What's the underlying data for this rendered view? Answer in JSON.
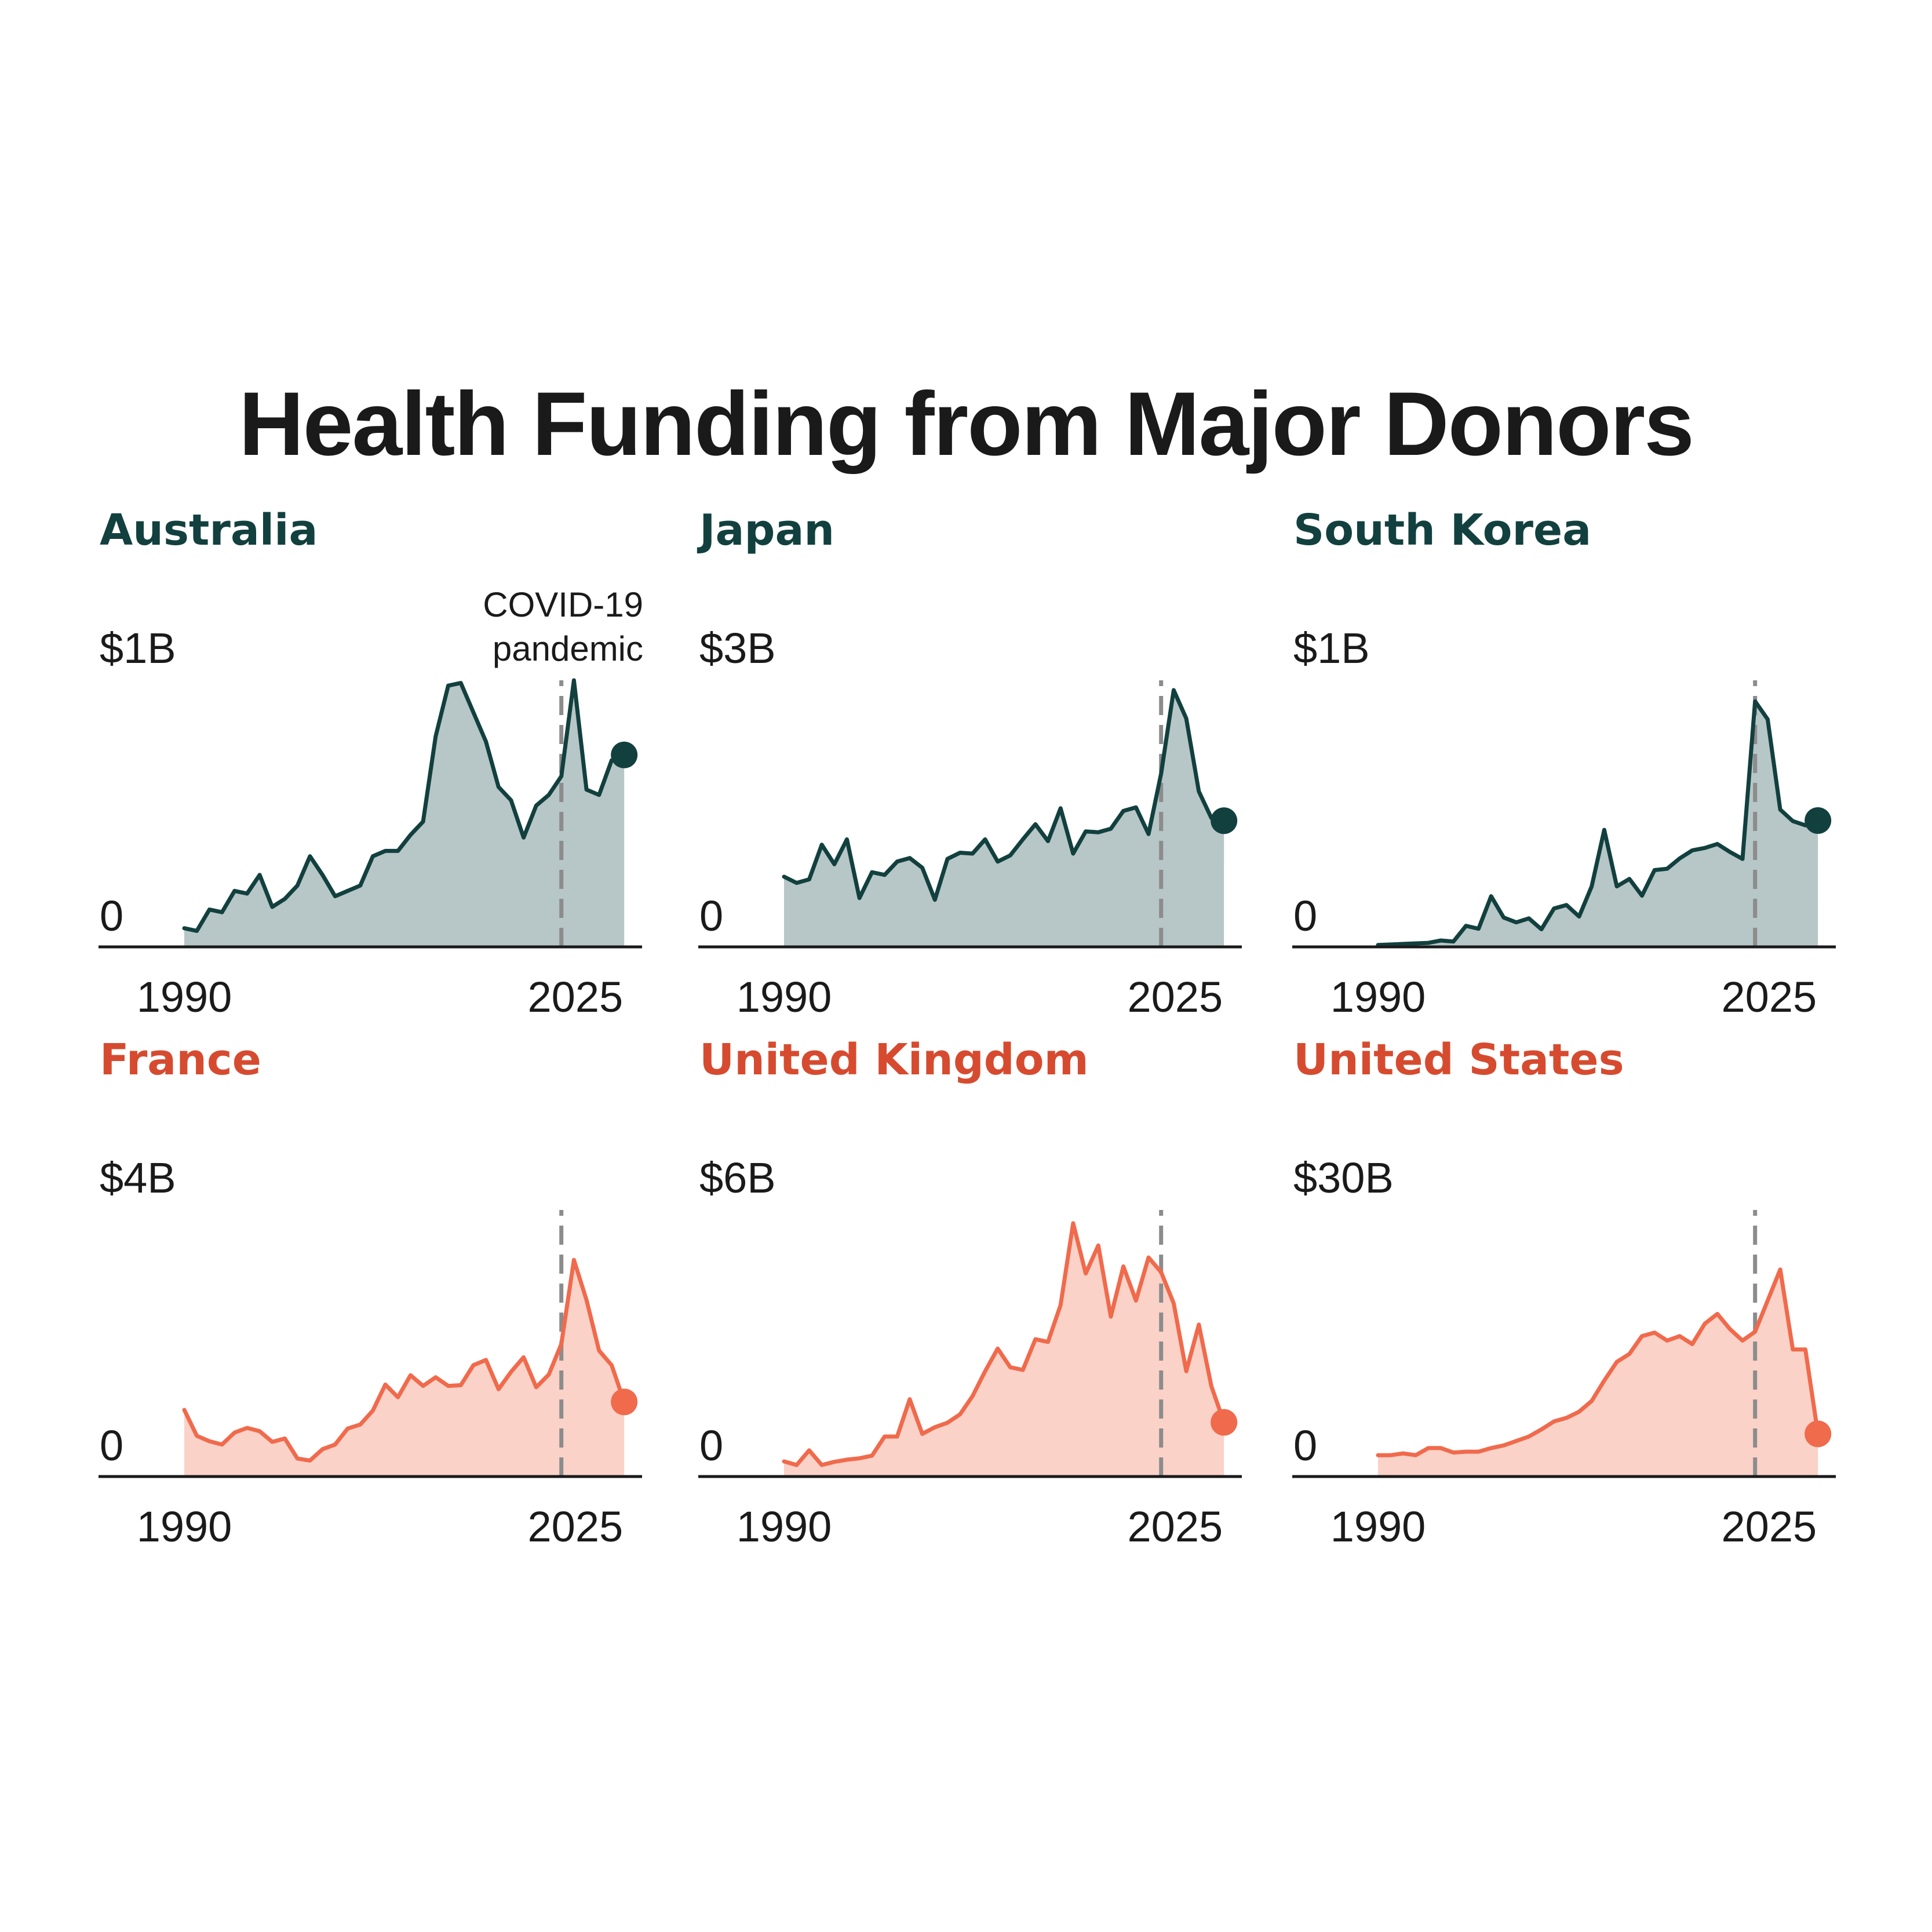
{
  "title": "Health Funding from Major Donors",
  "annotation": {
    "lines": [
      "COVID-19",
      "pandemic"
    ],
    "year": 2020
  },
  "colors": {
    "teal_line": "#12403f",
    "teal_fill": "#b7c6c6",
    "teal_title": "#12403f",
    "orange_line": "#f06a4c",
    "orange_fill": "#fbd2c8",
    "orange_title": "#d64b2f",
    "axis": "#1a1a1a",
    "dashed": "#8c8c8c",
    "text": "#1a1a1a"
  },
  "chart_data": [
    {
      "type": "area",
      "title": "Australia",
      "theme": "teal",
      "ymax_label": "$1B",
      "ymin_label": "0",
      "ylim": [
        0,
        1
      ],
      "unit": "USD billions",
      "x_tick_labels": [
        "1990",
        "2025"
      ],
      "x": [
        1990,
        1991,
        1992,
        1993,
        1994,
        1995,
        1996,
        1997,
        1998,
        1999,
        2000,
        2001,
        2002,
        2003,
        2004,
        2005,
        2006,
        2007,
        2008,
        2009,
        2010,
        2011,
        2012,
        2013,
        2014,
        2015,
        2016,
        2017,
        2018,
        2019,
        2020,
        2021,
        2022,
        2023,
        2024,
        2025
      ],
      "values": [
        0.07,
        0.06,
        0.14,
        0.13,
        0.21,
        0.2,
        0.27,
        0.15,
        0.18,
        0.23,
        0.34,
        0.27,
        0.19,
        0.21,
        0.23,
        0.34,
        0.36,
        0.36,
        0.42,
        0.47,
        0.79,
        0.98,
        0.99,
        0.88,
        0.77,
        0.6,
        0.55,
        0.41,
        0.53,
        0.57,
        0.64,
        1.0,
        0.59,
        0.57,
        0.7,
        0.72
      ],
      "annotated": true
    },
    {
      "type": "area",
      "title": "Japan",
      "theme": "teal",
      "ymax_label": "$3B",
      "ymin_label": "0",
      "ylim": [
        0,
        3
      ],
      "unit": "USD billions",
      "x_tick_labels": [
        "1990",
        "2025"
      ],
      "x": [
        1990,
        1991,
        1992,
        1993,
        1994,
        1995,
        1996,
        1997,
        1998,
        1999,
        2000,
        2001,
        2002,
        2003,
        2004,
        2005,
        2006,
        2007,
        2008,
        2009,
        2010,
        2011,
        2012,
        2013,
        2014,
        2015,
        2016,
        2017,
        2018,
        2019,
        2020,
        2021,
        2022,
        2023,
        2024,
        2025
      ],
      "values": [
        0.79,
        0.72,
        0.76,
        1.15,
        0.93,
        1.21,
        0.55,
        0.84,
        0.81,
        0.96,
        1.0,
        0.89,
        0.53,
        0.99,
        1.06,
        1.05,
        1.21,
        0.96,
        1.03,
        1.21,
        1.38,
        1.19,
        1.56,
        1.05,
        1.3,
        1.29,
        1.33,
        1.53,
        1.57,
        1.27,
        1.95,
        2.89,
        2.57,
        1.75,
        1.45,
        1.42
      ],
      "annotated": false
    },
    {
      "type": "area",
      "title": "South Korea",
      "theme": "teal",
      "ymax_label": "$1B",
      "ymin_label": "0",
      "ylim": [
        0,
        1
      ],
      "unit": "USD billions",
      "x_tick_labels": [
        "1990",
        "2025"
      ],
      "x": [
        1990,
        1991,
        1992,
        1993,
        1994,
        1995,
        1996,
        1997,
        1998,
        1999,
        2000,
        2001,
        2002,
        2003,
        2004,
        2005,
        2006,
        2007,
        2008,
        2009,
        2010,
        2011,
        2012,
        2013,
        2014,
        2015,
        2016,
        2017,
        2018,
        2019,
        2020,
        2021,
        2022,
        2023,
        2024,
        2025
      ],
      "values": [
        0.007,
        0.009,
        0.011,
        0.013,
        0.015,
        0.024,
        0.02,
        0.079,
        0.068,
        0.19,
        0.11,
        0.092,
        0.107,
        0.066,
        0.144,
        0.157,
        0.114,
        0.227,
        0.439,
        0.227,
        0.255,
        0.192,
        0.288,
        0.293,
        0.332,
        0.362,
        0.371,
        0.386,
        0.356,
        0.33,
        0.921,
        0.854,
        0.515,
        0.472,
        0.456,
        0.474
      ],
      "annotated": false
    },
    {
      "type": "area",
      "title": "France",
      "theme": "orange",
      "ymax_label": "$4B",
      "ymin_label": "0",
      "ylim": [
        0,
        4
      ],
      "unit": "USD billions",
      "x_tick_labels": [
        "1990",
        "2025"
      ],
      "x": [
        1990,
        1991,
        1992,
        1993,
        1994,
        1995,
        1996,
        1997,
        1998,
        1999,
        2000,
        2001,
        2002,
        2003,
        2004,
        2005,
        2006,
        2007,
        2008,
        2009,
        2010,
        2011,
        2012,
        2013,
        2014,
        2015,
        2016,
        2017,
        2018,
        2019,
        2020,
        2021,
        2022,
        2023,
        2024,
        2025
      ],
      "values": [
        1.0,
        0.61,
        0.53,
        0.48,
        0.66,
        0.73,
        0.68,
        0.52,
        0.57,
        0.27,
        0.24,
        0.41,
        0.48,
        0.72,
        0.78,
        0.99,
        1.38,
        1.19,
        1.52,
        1.36,
        1.49,
        1.36,
        1.37,
        1.67,
        1.75,
        1.31,
        1.57,
        1.79,
        1.34,
        1.53,
        1.99,
        3.25,
        2.65,
        1.89,
        1.67,
        1.12
      ],
      "annotated": false
    },
    {
      "type": "area",
      "title": "United Kingdom",
      "theme": "orange",
      "ymax_label": "$6B",
      "ymin_label": "0",
      "ylim": [
        0,
        6
      ],
      "unit": "USD billions",
      "x_tick_labels": [
        "1990",
        "2025"
      ],
      "x": [
        1990,
        1991,
        1992,
        1993,
        1994,
        1995,
        1996,
        1997,
        1998,
        1999,
        2000,
        2001,
        2002,
        2003,
        2004,
        2005,
        2006,
        2007,
        2008,
        2009,
        2010,
        2011,
        2012,
        2013,
        2014,
        2015,
        2016,
        2017,
        2018,
        2019,
        2020,
        2021,
        2022,
        2023,
        2024,
        2025
      ],
      "values": [
        0.34,
        0.26,
        0.59,
        0.26,
        0.33,
        0.38,
        0.41,
        0.47,
        0.9,
        0.9,
        1.74,
        0.96,
        1.11,
        1.21,
        1.4,
        1.81,
        2.37,
        2.88,
        2.46,
        2.4,
        3.09,
        3.03,
        3.86,
        5.7,
        4.57,
        5.2,
        3.6,
        4.73,
        3.96,
        4.93,
        4.6,
        3.9,
        2.37,
        3.42,
        2.03,
        1.22
      ],
      "annotated": false
    },
    {
      "type": "area",
      "title": "United States",
      "theme": "orange",
      "ymax_label": "$30B",
      "ymin_label": "0",
      "ylim": [
        0,
        30
      ],
      "unit": "USD billions",
      "x_tick_labels": [
        "1990",
        "2025"
      ],
      "x": [
        1990,
        1991,
        1992,
        1993,
        1994,
        1995,
        1996,
        1997,
        1998,
        1999,
        2000,
        2001,
        2002,
        2003,
        2004,
        2005,
        2006,
        2007,
        2008,
        2009,
        2010,
        2011,
        2012,
        2013,
        2014,
        2015,
        2016,
        2017,
        2018,
        2019,
        2020,
        2021,
        2022,
        2023,
        2024,
        2025
      ],
      "values": [
        2.4,
        2.4,
        2.6,
        2.4,
        3.2,
        3.2,
        2.7,
        2.8,
        2.8,
        3.2,
        3.5,
        4.0,
        4.5,
        5.3,
        6.2,
        6.6,
        7.3,
        8.5,
        10.8,
        12.9,
        13.8,
        15.8,
        16.2,
        15.3,
        15.8,
        14.9,
        17.2,
        18.3,
        16.6,
        15.3,
        16.3,
        19.8,
        23.3,
        14.3,
        14.3,
        4.8
      ],
      "annotated": false
    }
  ]
}
